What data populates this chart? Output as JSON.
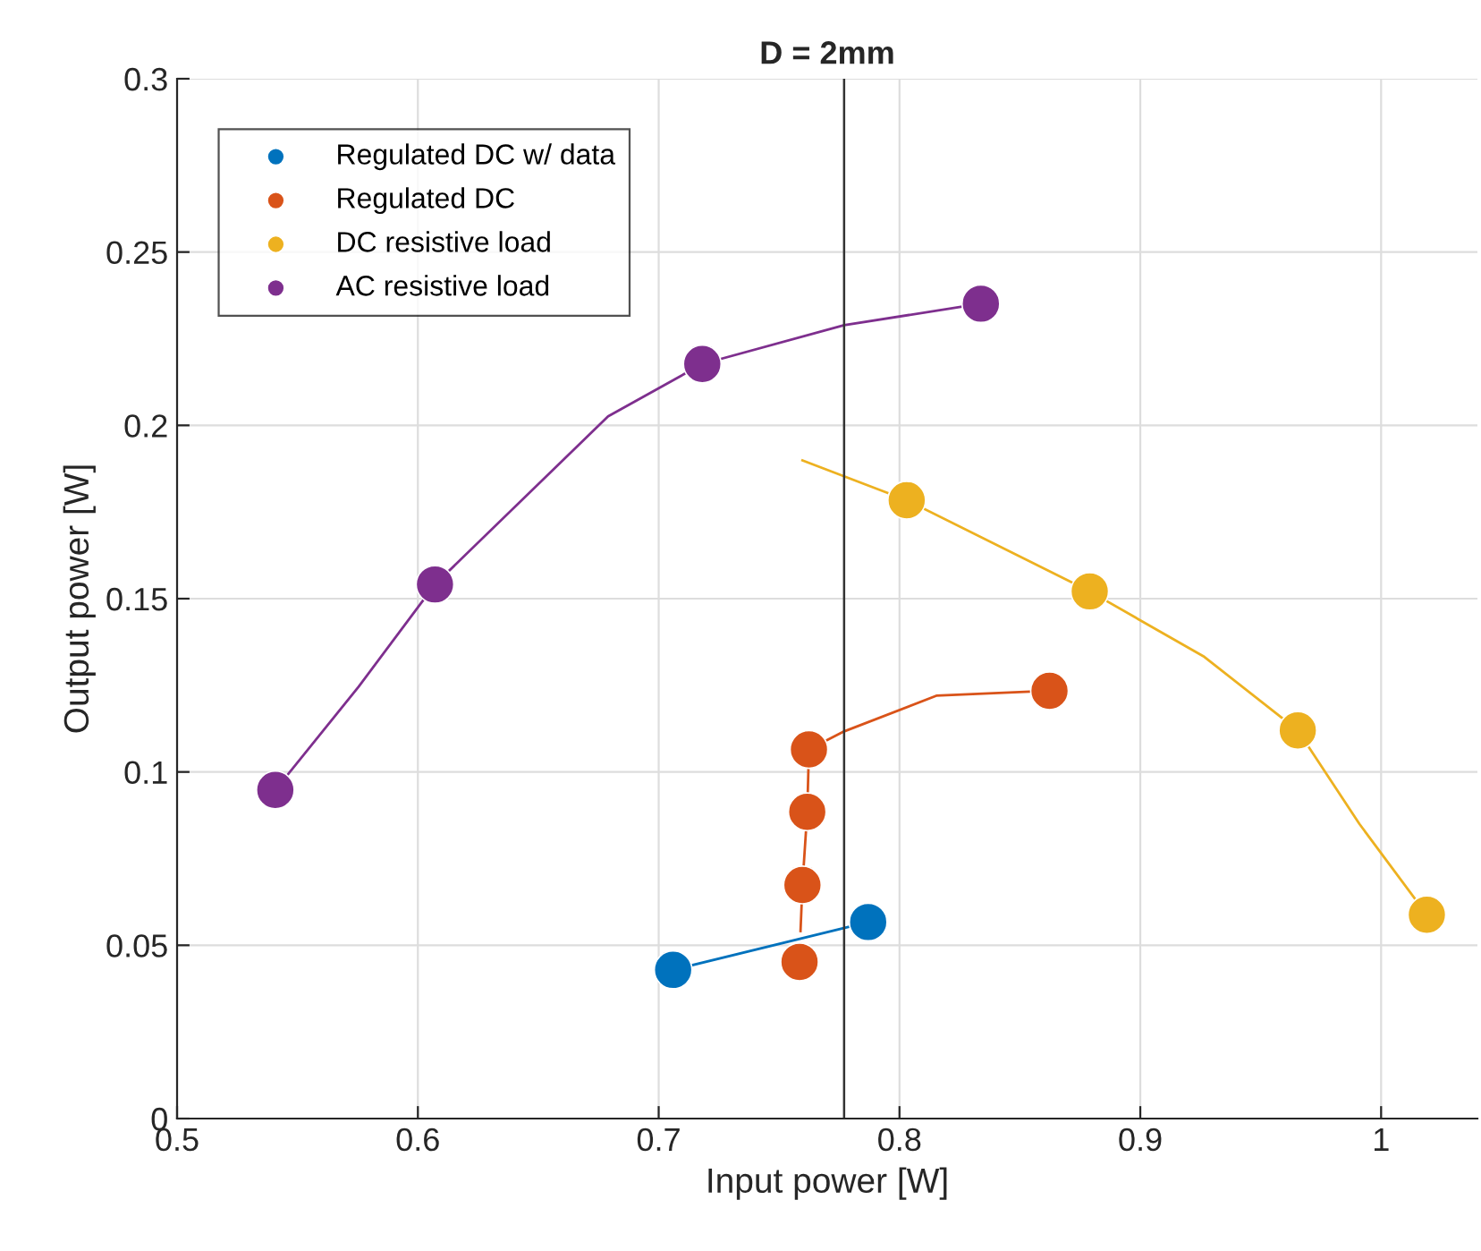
{
  "chart_data": {
    "type": "scatter",
    "title": "D = 2mm",
    "xlabel": "Input power [W]",
    "ylabel": "Output power [W]",
    "xlim": [
      0.5,
      1.04
    ],
    "xticks": [
      0.5,
      0.6,
      0.7,
      0.8,
      0.9,
      1
    ],
    "ylim": [
      0,
      0.3
    ],
    "yticks": [
      0,
      0.05,
      0.1,
      0.15,
      0.2,
      0.25,
      0.3
    ],
    "grid": true,
    "legend": "top left",
    "marker": "circle",
    "ref_lines": [
      {
        "axis": "x",
        "value": 0.777,
        "color": "#333333"
      }
    ],
    "series": [
      {
        "type": "line",
        "marker": "none",
        "color": "#0072bd",
        "x": [
          0.706,
          0.787
        ],
        "values": [
          0.0429,
          0.0567
        ]
      },
      {
        "type": "line",
        "marker": "none",
        "color": "#d95319",
        "x": [
          0.7589,
          0.7597,
          0.7617,
          0.7624,
          0.777,
          0.8153,
          0.8623
        ],
        "values": [
          0.0541,
          0.0674,
          0.0885,
          0.1065,
          0.1117,
          0.122,
          0.1234
        ]
      },
      {
        "type": "line",
        "marker": "none",
        "color": "#edb120",
        "x": [
          0.7597,
          0.803,
          0.879,
          0.9266,
          0.9654,
          0.991,
          1.019
        ],
        "values": [
          0.1899,
          0.1784,
          0.1521,
          0.1332,
          0.112,
          0.085,
          0.0588
        ]
      },
      {
        "type": "line",
        "marker": "none",
        "color": "#7e2f8e",
        "x": [
          0.5408,
          0.5754,
          0.6071,
          0.679,
          0.7181,
          0.777,
          0.8338
        ],
        "values": [
          0.0948,
          0.1246,
          0.1541,
          0.2026,
          0.2177,
          0.2289,
          0.2351
        ]
      },
      {
        "name": "Regulated DC w/ data",
        "color": "#0072bd",
        "x": [
          0.706,
          0.787
        ],
        "values": [
          0.0429,
          0.0567
        ]
      },
      {
        "name": "Regulated DC",
        "color": "#d95319",
        "x": [
          0.7585,
          0.7597,
          0.7617,
          0.7624,
          0.8623
        ],
        "values": [
          0.0452,
          0.0674,
          0.0885,
          0.1065,
          0.1234
        ]
      },
      {
        "name": "DC resistive load",
        "color": "#edb120",
        "x": [
          0.803,
          0.879,
          0.9654,
          1.019
        ],
        "values": [
          0.1784,
          0.1521,
          0.112,
          0.0588
        ]
      },
      {
        "name": "AC resistive load",
        "color": "#7e2f8e",
        "x": [
          0.5408,
          0.6071,
          0.7181,
          0.8338
        ],
        "values": [
          0.0948,
          0.1541,
          0.2177,
          0.2351
        ]
      }
    ]
  }
}
